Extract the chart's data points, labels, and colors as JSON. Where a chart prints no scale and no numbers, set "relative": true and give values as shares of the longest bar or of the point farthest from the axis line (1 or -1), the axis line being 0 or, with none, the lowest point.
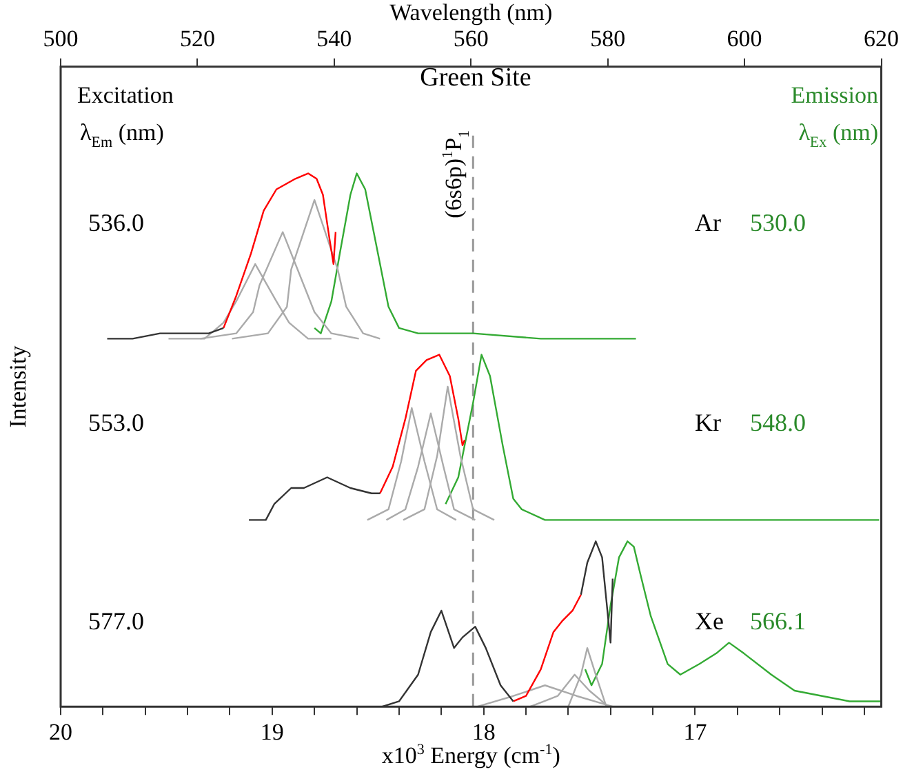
{
  "chart_data": {
    "type": "line",
    "relative": true,
    "xlabel": "x10$^{3}$ Energy (cm$^{-1}$)",
    "ylabel": "Intensity",
    "x2label": "Wavelength (nm)",
    "xlim": [
      20,
      16.12
    ],
    "xticks": [
      20,
      {
        "value": 19.8,
        "label": null
      },
      {
        "value": 19.6,
        "label": null
      },
      {
        "value": 19.4,
        "label": null
      },
      {
        "value": 19.2,
        "label": null
      },
      19,
      {
        "value": 18.8,
        "label": null
      },
      {
        "value": 18.6,
        "label": null
      },
      {
        "value": 18.4,
        "label": null
      },
      {
        "value": 18.2,
        "label": null
      },
      18,
      {
        "value": 17.8,
        "label": null
      },
      {
        "value": 17.6,
        "label": null
      },
      {
        "value": 17.4,
        "label": null
      },
      {
        "value": 17.2,
        "label": null
      },
      17,
      {
        "value": 16.8,
        "label": null
      },
      {
        "value": 16.6,
        "label": null
      },
      {
        "value": 16.4,
        "label": null
      },
      {
        "value": 16.2,
        "label": null
      }
    ],
    "x2lim": [
      500,
      620
    ],
    "x2ticks": [
      500,
      520,
      540,
      560,
      580,
      600,
      620
    ],
    "series": [
      {
        "color": "#333333",
        "x": [
          19.78,
          19.66,
          19.53,
          19.4,
          19.3,
          19.23
        ],
        "values": [
          0.69,
          0.69,
          0.7,
          0.7,
          0.7,
          0.71
        ]
      },
      {
        "color": "#ff0000",
        "x": [
          19.23,
          19.17,
          19.1,
          19.04,
          18.98,
          18.89,
          18.83,
          18.79,
          18.76,
          18.73,
          18.71,
          18.7
        ],
        "values": [
          0.71,
          0.77,
          0.85,
          0.93,
          0.97,
          0.99,
          1.0,
          0.99,
          0.96,
          0.88,
          0.83,
          0.89
        ]
      },
      {
        "color": "#aaaaaa",
        "x": [
          19.49,
          19.32,
          19.23,
          19.17,
          19.08,
          18.98,
          18.92,
          18.83,
          18.72
        ],
        "values": [
          0.69,
          0.69,
          0.72,
          0.76,
          0.83,
          0.76,
          0.72,
          0.69,
          0.69
        ]
      },
      {
        "color": "#aaaaaa",
        "x": [
          19.34,
          19.17,
          19.09,
          19.06,
          18.95,
          18.85,
          18.8,
          18.72,
          18.59
        ],
        "values": [
          0.69,
          0.7,
          0.74,
          0.79,
          0.89,
          0.79,
          0.74,
          0.7,
          0.69
        ]
      },
      {
        "color": "#aaaaaa",
        "x": [
          19.19,
          19.02,
          18.93,
          18.91,
          18.8,
          18.69,
          18.65,
          18.57,
          18.49
        ],
        "values": [
          0.69,
          0.7,
          0.75,
          0.82,
          0.95,
          0.82,
          0.75,
          0.7,
          0.69
        ]
      },
      {
        "color": "#33aa33",
        "x": [
          18.8,
          18.77,
          18.72,
          18.68,
          18.63,
          18.6,
          18.56,
          18.5,
          18.45,
          18.4,
          18.31,
          18.2,
          18.05,
          17.73,
          17.28
        ],
        "values": [
          0.71,
          0.7,
          0.76,
          0.85,
          0.96,
          1.0,
          0.97,
          0.85,
          0.75,
          0.71,
          0.7,
          0.7,
          0.7,
          0.69,
          0.69
        ]
      },
      {
        "color": "#333333",
        "x": [
          19.11,
          19.03,
          18.99,
          18.91,
          18.85,
          18.74,
          18.63,
          18.53,
          18.49
        ],
        "values": [
          0.35,
          0.35,
          0.38,
          0.41,
          0.41,
          0.43,
          0.41,
          0.4,
          0.4
        ]
      },
      {
        "color": "#ff0000",
        "x": [
          18.49,
          18.43,
          18.37,
          18.32,
          18.27,
          18.21,
          18.16,
          18.12,
          18.1,
          18.09
        ],
        "values": [
          0.4,
          0.45,
          0.54,
          0.63,
          0.65,
          0.66,
          0.62,
          0.54,
          0.49,
          0.5
        ]
      },
      {
        "color": "#aaaaaa",
        "x": [
          18.55,
          18.45,
          18.39,
          18.34,
          18.28,
          18.22,
          18.13
        ],
        "values": [
          0.35,
          0.37,
          0.46,
          0.56,
          0.46,
          0.37,
          0.35
        ]
      },
      {
        "color": "#aaaaaa",
        "x": [
          18.46,
          18.37,
          18.31,
          18.25,
          18.19,
          18.14,
          18.04
        ],
        "values": [
          0.35,
          0.37,
          0.45,
          0.55,
          0.45,
          0.37,
          0.35
        ]
      },
      {
        "color": "#aaaaaa",
        "x": [
          18.38,
          18.28,
          18.22,
          18.17,
          18.11,
          18.05,
          17.95
        ],
        "values": [
          0.35,
          0.37,
          0.47,
          0.6,
          0.47,
          0.37,
          0.35
        ]
      },
      {
        "color": "#33aa33",
        "x": [
          18.18,
          18.12,
          18.05,
          18.01,
          17.97,
          17.91,
          17.86,
          17.82,
          17.71,
          17.39,
          16.13
        ],
        "values": [
          0.38,
          0.43,
          0.57,
          0.66,
          0.62,
          0.49,
          0.39,
          0.37,
          0.35,
          0.35,
          0.35
        ]
      },
      {
        "color": "#333333",
        "x": [
          18.48,
          18.4,
          18.31,
          18.25,
          18.2,
          18.14,
          18.1,
          18.04,
          17.99,
          17.92,
          17.86
        ],
        "values": [
          0.0,
          0.01,
          0.06,
          0.14,
          0.18,
          0.11,
          0.13,
          0.15,
          0.11,
          0.04,
          0.01
        ]
      },
      {
        "color": "#ff0000",
        "x": [
          17.86,
          17.8,
          17.73,
          17.67,
          17.63,
          17.58,
          17.54
        ],
        "values": [
          0.01,
          0.02,
          0.07,
          0.14,
          0.16,
          0.18,
          0.21
        ]
      },
      {
        "color": "#333333",
        "x": [
          17.54,
          17.51,
          17.47,
          17.44,
          17.42,
          17.4,
          17.39
        ],
        "values": [
          0.21,
          0.27,
          0.31,
          0.28,
          0.2,
          0.12,
          0.24
        ]
      },
      {
        "color": "#aaaaaa",
        "x": [
          18.03,
          17.86,
          17.71,
          17.56,
          17.39
        ],
        "values": [
          0.0,
          0.02,
          0.04,
          0.02,
          0.0
        ]
      },
      {
        "color": "#aaaaaa",
        "x": [
          17.78,
          17.65,
          17.57,
          17.5,
          17.41
        ],
        "values": [
          0.0,
          0.02,
          0.06,
          0.03,
          0.0
        ]
      },
      {
        "color": "#aaaaaa",
        "x": [
          17.6,
          17.54,
          17.51,
          17.47,
          17.42
        ],
        "values": [
          0.0,
          0.06,
          0.11,
          0.06,
          0.0
        ]
      },
      {
        "color": "#33aa33",
        "x": [
          17.52,
          17.49,
          17.44,
          17.4,
          17.36,
          17.32,
          17.29,
          17.26,
          17.21,
          17.13,
          17.07,
          16.98,
          16.9,
          16.84,
          16.77,
          16.64,
          16.53,
          16.4,
          16.27,
          16.12
        ],
        "values": [
          0.07,
          0.04,
          0.08,
          0.19,
          0.28,
          0.31,
          0.3,
          0.25,
          0.17,
          0.08,
          0.06,
          0.08,
          0.1,
          0.12,
          0.1,
          0.06,
          0.03,
          0.02,
          0.01,
          0.01
        ]
      }
    ],
    "ref_lines": [
      {
        "axis": "x",
        "value": 18.05,
        "label": "(6s6p)$^{1}$P$_{1}$",
        "color": "#999999",
        "line_style": "dashed"
      }
    ],
    "annotations": [
      "Excitation",
      "λ$_{Em}$ (nm)",
      "Emission",
      "λ$_{Ex}$ (nm)",
      "536.0",
      "553.0",
      "577.0",
      "Ar",
      "Kr",
      "Xe",
      "530.0",
      "548.0",
      "566.1",
      "Green Site"
    ]
  }
}
